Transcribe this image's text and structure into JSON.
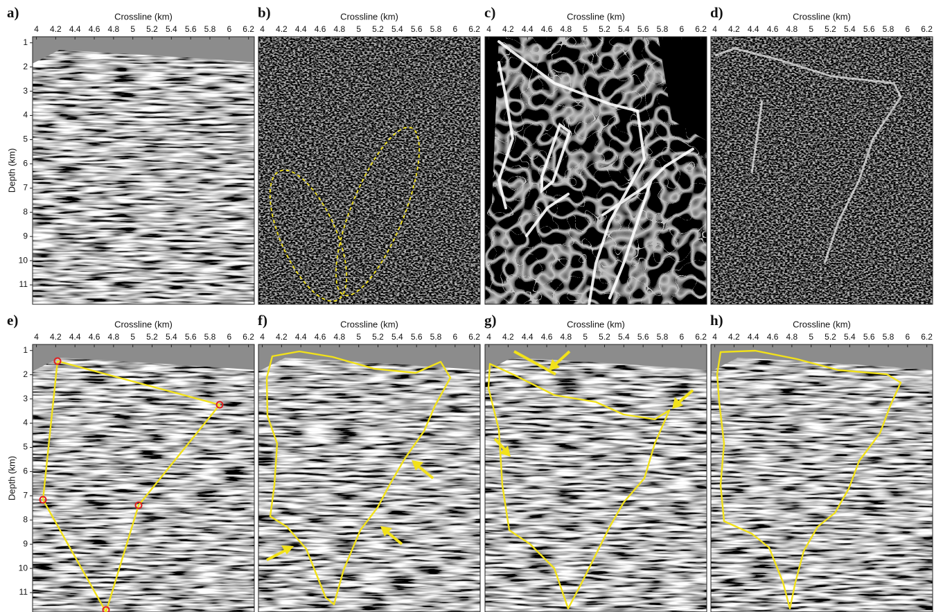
{
  "chart_data": [
    {
      "type": "seismic",
      "label": "a)",
      "xlabel": "Crossline (km)",
      "ylabel": "Depth (km)",
      "xlim": [
        3.96,
        6.26
      ],
      "xticks": [
        4,
        4.2,
        4.4,
        4.6,
        4.8,
        5,
        5.2,
        5.4,
        5.6,
        5.8,
        6,
        6.2
      ],
      "ylim": [
        0.75,
        11.8
      ],
      "yticks": [
        1,
        2,
        3,
        4,
        5,
        6,
        7,
        8,
        9,
        10,
        11
      ]
    },
    {
      "type": "seismic",
      "label": "b)",
      "xlabel": "Crossline (km)",
      "xlim": [
        3.96,
        6.26
      ],
      "xticks": [
        4,
        4.2,
        4.4,
        4.6,
        4.8,
        5,
        5.2,
        5.4,
        5.6,
        5.8,
        6,
        6.2
      ]
    },
    {
      "type": "seismic",
      "label": "c)",
      "xlabel": "Crossline (km)",
      "xlim": [
        3.96,
        6.26
      ],
      "xticks": [
        4,
        4.2,
        4.4,
        4.6,
        4.8,
        5,
        5.2,
        5.4,
        5.6,
        5.8,
        6,
        6.2
      ]
    },
    {
      "type": "seismic",
      "label": "d)",
      "xlabel": "Crossline (km)",
      "xlim": [
        3.96,
        6.26
      ],
      "xticks": [
        4,
        4.2,
        4.4,
        4.6,
        4.8,
        5,
        5.2,
        5.4,
        5.6,
        5.8,
        6,
        6.2
      ]
    },
    {
      "type": "seismic",
      "label": "e)",
      "xlabel": "Crossline (km)",
      "ylabel": "Depth (km)",
      "xlim": [
        3.96,
        6.26
      ],
      "xticks": [
        4,
        4.2,
        4.4,
        4.6,
        4.8,
        5,
        5.2,
        5.4,
        5.6,
        5.8,
        6,
        6.2
      ],
      "ylim": [
        0.75,
        11.8
      ],
      "yticks": [
        1,
        2,
        3,
        4,
        5,
        6,
        7,
        8,
        9,
        10,
        11
      ]
    },
    {
      "type": "seismic",
      "label": "f)",
      "xlabel": "Crossline (km)",
      "xlim": [
        3.96,
        6.26
      ],
      "xticks": [
        4,
        4.2,
        4.4,
        4.6,
        4.8,
        5,
        5.2,
        5.4,
        5.6,
        5.8,
        6,
        6.2
      ]
    },
    {
      "type": "seismic",
      "label": "g)",
      "xlabel": "Crossline (km)",
      "xlim": [
        3.96,
        6.26
      ],
      "xticks": [
        4,
        4.2,
        4.4,
        4.6,
        4.8,
        5,
        5.2,
        5.4,
        5.6,
        5.8,
        6,
        6.2
      ]
    },
    {
      "type": "seismic",
      "label": "h)",
      "xlabel": "Crossline (km)",
      "xlim": [
        3.96,
        6.26
      ],
      "xticks": [
        4,
        4.2,
        4.4,
        4.6,
        4.8,
        5,
        5.2,
        5.4,
        5.6,
        5.8,
        6,
        6.2
      ]
    }
  ]
}
